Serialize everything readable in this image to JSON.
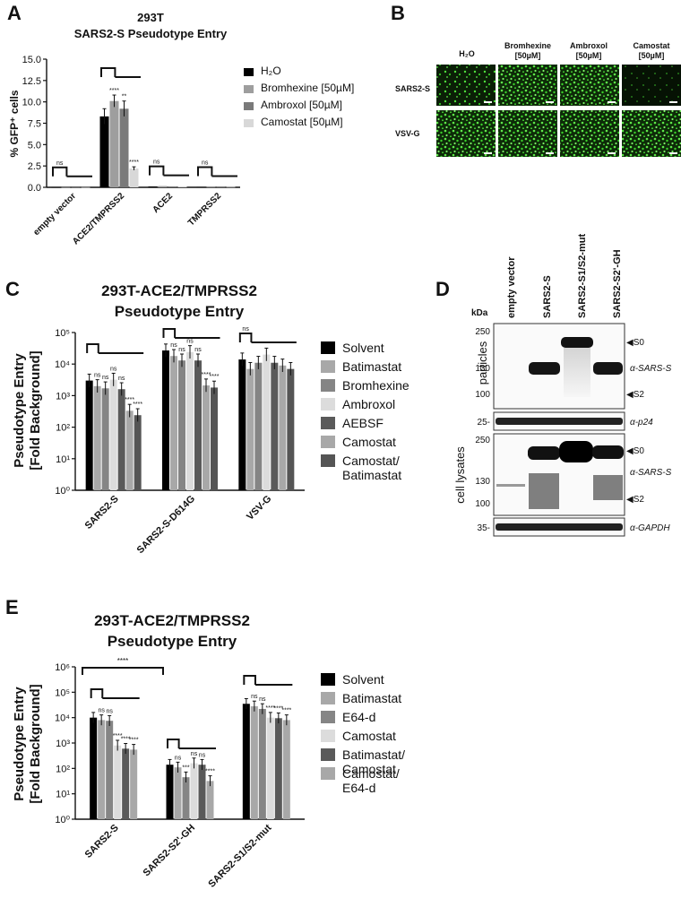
{
  "panels": {
    "A": {
      "letter": "A",
      "title": [
        "293T",
        "SARS2-S Pseudotype Entry"
      ],
      "ylabel": "% GFP⁺ cells",
      "legend": [
        "H₂O",
        "Bromhexine [50µM]",
        "Ambroxol [50µM]",
        "Camostat [50µM]"
      ],
      "colors": [
        "#000000",
        "#9e9e9e",
        "#7a7a7a",
        "#d8d8d8"
      ]
    },
    "B": {
      "letter": "B",
      "cols": [
        "H₂O",
        "Bromhexine [50µM]",
        "Ambroxol [50µM]",
        "Camostat [50µM]"
      ],
      "rows": [
        "SARS2-S",
        "VSV-G"
      ]
    },
    "C": {
      "letter": "C",
      "title": [
        "293T-ACE2/TMPRSS2",
        "Pseudotype Entry"
      ],
      "ylabel": [
        "Pseudotype Entry",
        "[Fold Background]"
      ],
      "legend": [
        "Solvent",
        "Batimastat",
        "Bromhexine",
        "Ambroxol",
        "AEBSF",
        "Camostat",
        "Camostat/ Batimastat"
      ],
      "colors": [
        "#000000",
        "#a8a8a8",
        "#858585",
        "#dcdcdc",
        "#5a5a5a",
        "#a8a8a8",
        "#555555"
      ]
    },
    "D": {
      "letter": "D",
      "lanes": [
        "empty vector",
        "SARS2-S",
        "SARS2-S1/S2-mut",
        "SARS2-S2'-GH"
      ],
      "kda": "kDa",
      "markers_particles": [
        "250",
        "130",
        "100"
      ],
      "marker_p24": "25-",
      "markers_lysates": [
        "250",
        "130",
        "100"
      ],
      "marker_gapdh": "35-",
      "label_particles": "particles",
      "label_lysates": "cell lysates",
      "ann_s0": "◀S0",
      "ann_s2": "◀S2",
      "ann_sarss": "α-SARS-S",
      "ann_p24": "α-p24",
      "ann_gapdh": "α-GAPDH"
    },
    "E": {
      "letter": "E",
      "title": [
        "293T-ACE2/TMPRSS2",
        "Pseudotype Entry"
      ],
      "ylabel": [
        "Pseudotype Entry",
        "[Fold Background]"
      ],
      "legend": [
        "Solvent",
        "Batimastat",
        "E64-d",
        "Camostat",
        "Batimastat/ Camostat",
        "Camostat/ E64-d"
      ],
      "colors": [
        "#000000",
        "#a8a8a8",
        "#858585",
        "#dcdcdc",
        "#5a5a5a",
        "#a8a8a8"
      ]
    }
  },
  "chart_data": [
    {
      "panel": "A",
      "type": "bar",
      "categories": [
        "empty vector",
        "ACE2/TMPRSS2",
        "ACE2",
        "TMPRSS2"
      ],
      "ylim": [
        0,
        15
      ],
      "yticks": [
        "0.0",
        "2.5",
        "5.0",
        "7.5",
        "10.0",
        "12.5",
        "15.0"
      ],
      "series": [
        {
          "name": "H₂O",
          "values": [
            0.02,
            8.3,
            0.1,
            0.05
          ],
          "errors": [
            0,
            0.9,
            0.05,
            0.02
          ]
        },
        {
          "name": "Bromhexine [50µM]",
          "values": [
            0.02,
            10.1,
            0.15,
            0.05
          ],
          "errors": [
            0,
            0.7,
            0.05,
            0.02
          ]
        },
        {
          "name": "Ambroxol [50µM]",
          "values": [
            0.02,
            9.2,
            0.1,
            0.05
          ],
          "errors": [
            0,
            0.9,
            0.05,
            0.02
          ]
        },
        {
          "name": "Camostat [50µM]",
          "values": [
            0.02,
            2.2,
            0.1,
            0.05
          ],
          "errors": [
            0,
            0.2,
            0.05,
            0.02
          ]
        }
      ],
      "annotations": [
        {
          "category": 0,
          "series": 1,
          "text": "ns"
        },
        {
          "category": 1,
          "series": 1,
          "text": "****"
        },
        {
          "category": 1,
          "series": 2,
          "text": "**"
        },
        {
          "category": 1,
          "series": 3,
          "text": "****"
        },
        {
          "category": 2,
          "series": 1,
          "text": "ns"
        },
        {
          "category": 3,
          "series": 1,
          "text": "ns"
        }
      ]
    },
    {
      "panel": "C",
      "type": "bar",
      "scale": "log",
      "categories": [
        "SARS2-S",
        "SARS2-S-D614G",
        "VSV-G"
      ],
      "ylim": [
        1,
        100000
      ],
      "yticks": [
        "10⁰",
        "10¹",
        "10²",
        "10³",
        "10⁴",
        "10⁵"
      ],
      "series": [
        {
          "name": "Solvent",
          "values": [
            3000,
            27000,
            14000
          ]
        },
        {
          "name": "Batimastat",
          "values": [
            2000,
            18000,
            7000
          ]
        },
        {
          "name": "Bromhexine",
          "values": [
            1700,
            13000,
            11000
          ]
        },
        {
          "name": "Ambroxol",
          "values": [
            3200,
            24000,
            20000
          ]
        },
        {
          "name": "AEBSF",
          "values": [
            1600,
            13000,
            11000
          ]
        },
        {
          "name": "Camostat",
          "values": [
            330,
            2100,
            9000
          ]
        },
        {
          "name": "Camostat/ Batimastat",
          "values": [
            240,
            1800,
            7000
          ]
        }
      ],
      "annotations": [
        [
          "",
          "ns",
          "ns",
          "ns",
          "ns",
          "****",
          "****"
        ],
        [
          "",
          "ns",
          "ns",
          "ns",
          "ns",
          "****",
          "****"
        ],
        [
          "",
          "",
          "",
          "",
          "",
          "",
          ""
        ]
      ],
      "bracket_labels": [
        "",
        "",
        "ns"
      ]
    },
    {
      "panel": "E",
      "type": "bar",
      "scale": "log",
      "categories": [
        "SARS2-S",
        "SARS2-S2'-GH",
        "SARS2-S1/S2-mut"
      ],
      "ylim": [
        1,
        1000000
      ],
      "yticks": [
        "10⁰",
        "10¹",
        "10²",
        "10³",
        "10⁴",
        "10⁵",
        "10⁶"
      ],
      "series": [
        {
          "name": "Solvent",
          "values": [
            10000,
            140,
            35000
          ]
        },
        {
          "name": "Batimastat",
          "values": [
            8000,
            110,
            28000
          ]
        },
        {
          "name": "E64-d",
          "values": [
            7500,
            45,
            22000
          ]
        },
        {
          "name": "Camostat",
          "values": [
            800,
            160,
            10000
          ]
        },
        {
          "name": "Batimastat/ Camostat",
          "values": [
            600,
            140,
            9500
          ]
        },
        {
          "name": "Camostat/ E64-d",
          "values": [
            550,
            32,
            8000
          ]
        }
      ],
      "annotations": [
        [
          "",
          "ns",
          "ns",
          "****",
          "****",
          "****"
        ],
        [
          "",
          "ns",
          "***",
          "ns",
          "ns",
          "****"
        ],
        [
          "",
          "ns",
          "ns",
          "****",
          "****",
          "****"
        ]
      ],
      "top_bracket_label": "****"
    }
  ]
}
